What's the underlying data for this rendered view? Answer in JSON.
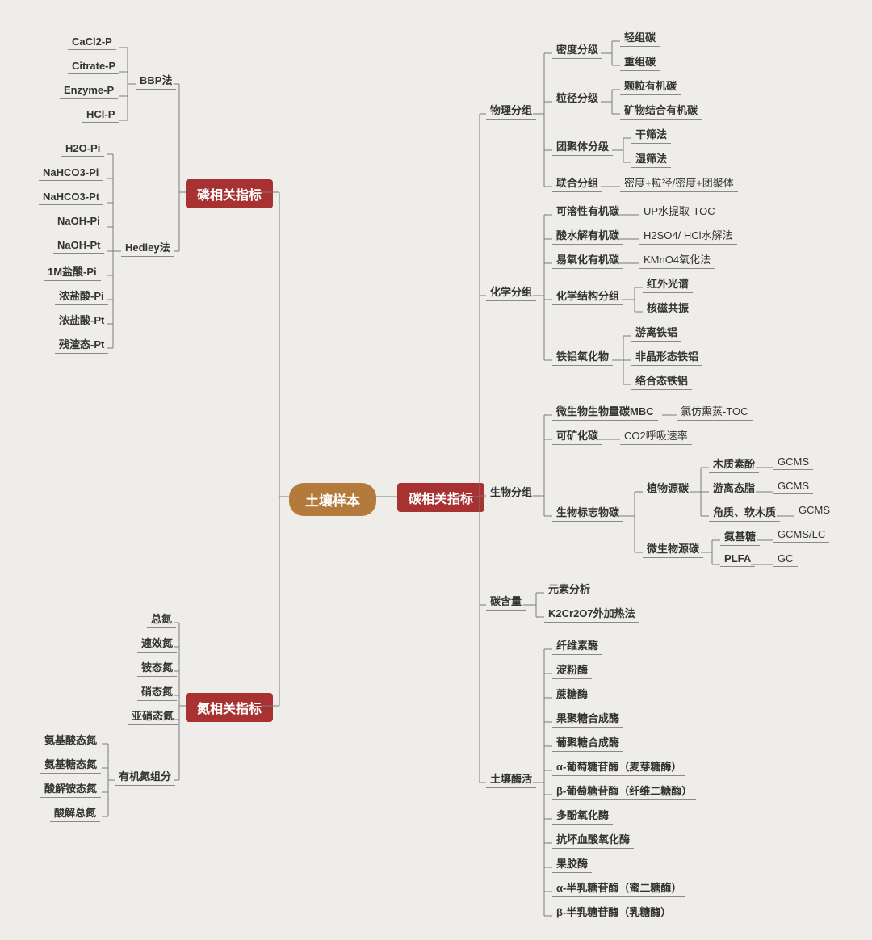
{
  "colors": {
    "background": "#efedea",
    "root_bg": "#b47a3c",
    "main_bg": "#a83232",
    "node_text_light": "#ffffff",
    "leaf_text": "#333333",
    "line": "#7a7a7a",
    "underline": "#8a8a8a"
  },
  "typography": {
    "root_fontsize": 17,
    "main_fontsize": 16,
    "leaf_fontsize": 13,
    "font_family": "Microsoft YaHei"
  },
  "root": "土壤样本",
  "phosphorus": {
    "title": "磷相关指标",
    "bbp": {
      "label": "BBP法",
      "items": [
        "CaCl2-P",
        "Citrate-P",
        "Enzyme-P",
        "HCl-P"
      ]
    },
    "hedley": {
      "label": "Hedley法",
      "items": [
        "H2O-Pi",
        "NaHCO3-Pi",
        "NaHCO3-Pt",
        "NaOH-Pi",
        "NaOH-Pt",
        "1M盐酸-Pi",
        "浓盐酸-Pi",
        "浓盐酸-Pt",
        "残渣态-Pt"
      ]
    }
  },
  "nitrogen": {
    "title": "氮相关指标",
    "direct": [
      "总氮",
      "速效氮",
      "铵态氮",
      "硝态氮",
      "亚硝态氮"
    ],
    "organic": {
      "label": "有机氮组分",
      "items": [
        "氨基酸态氮",
        "氨基糖态氮",
        "酸解铵态氮",
        "酸解总氮"
      ]
    }
  },
  "carbon": {
    "title": "碳相关指标",
    "physical": {
      "label": "物理分组",
      "density": {
        "label": "密度分级",
        "items": [
          "轻组碳",
          "重组碳"
        ]
      },
      "particle": {
        "label": "粒径分级",
        "items": [
          "颗粒有机碳",
          "矿物结合有机碳"
        ]
      },
      "aggregate": {
        "label": "团聚体分级",
        "items": [
          "干筛法",
          "湿筛法"
        ]
      },
      "combined": {
        "label": "联合分组",
        "note": "密度+粒径/密度+团聚体"
      }
    },
    "chemical": {
      "label": "化学分组",
      "soluble": {
        "label": "可溶性有机碳",
        "note": "UP水提取-TOC"
      },
      "acid": {
        "label": "酸水解有机碳",
        "note": "H2SO4/ HCl水解法"
      },
      "oxidizable": {
        "label": "易氧化有机碳",
        "note": "KMnO4氧化法"
      },
      "structure": {
        "label": "化学结构分组",
        "items": [
          "红外光谱",
          "核磁共振"
        ]
      },
      "fe_al": {
        "label": "铁铝氧化物",
        "items": [
          "游离铁铝",
          "非晶形态铁铝",
          "络合态铁铝"
        ]
      }
    },
    "biological": {
      "label": "生物分组",
      "mbc": {
        "label": "微生物生物量碳MBC",
        "note": "氯仿熏蒸-TOC"
      },
      "mineralizable": {
        "label": "可矿化碳",
        "note": "CO2呼吸速率"
      },
      "biomarker": {
        "label": "生物标志物碳",
        "plant": {
          "label": "植物源碳",
          "items": [
            {
              "name": "木质素酚",
              "method": "GCMS"
            },
            {
              "name": "游离态脂",
              "method": "GCMS"
            },
            {
              "name": "角质、软木质",
              "method": "GCMS"
            }
          ]
        },
        "microbe": {
          "label": "微生物源碳",
          "items": [
            {
              "name": "氨基糖",
              "method": "GCMS/LC"
            },
            {
              "name": "PLFA",
              "method": "GC"
            }
          ]
        }
      }
    },
    "content": {
      "label": "碳含量",
      "items": [
        "元素分析",
        "K2Cr2O7外加热法"
      ]
    },
    "enzymes": {
      "label": "土壤酶活",
      "items": [
        "纤维素酶",
        "淀粉酶",
        "蔗糖酶",
        "果聚糖合成酶",
        "葡聚糖合成酶",
        "α-葡萄糖苷酶（麦芽糖酶）",
        "β-葡萄糖苷酶（纤维二糖酶）",
        "多酚氧化酶",
        "抗坏血酸氧化酶",
        "果胶酶",
        "α-半乳糖苷酶（蜜二糖酶）",
        "β-半乳糖苷酶（乳糖酶）"
      ]
    }
  }
}
